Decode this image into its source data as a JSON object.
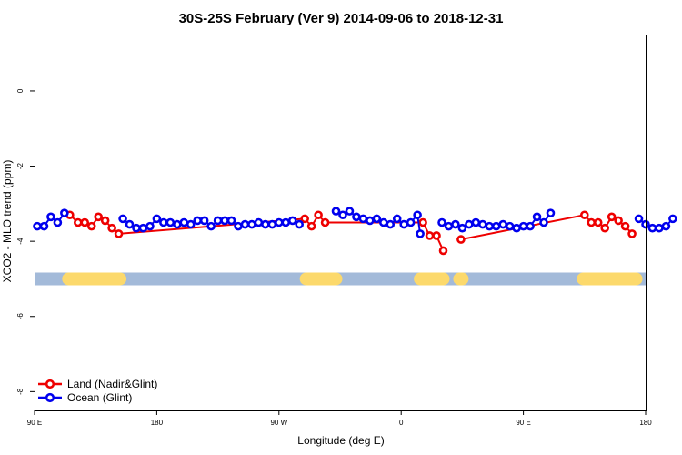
{
  "chart_data": {
    "type": "line",
    "title": "30S-25S February (Ver 9)   2014-09-06 to 2018-12-31",
    "xlabel": "Longitude (deg E)",
    "ylabel": "XCO2 - MLO trend (ppm)",
    "xlim": [
      90,
      540
    ],
    "ylim": [
      -8.5,
      1.5
    ],
    "x_ticks": [
      {
        "value": 90,
        "label": "90 E"
      },
      {
        "value": 180,
        "label": "180"
      },
      {
        "value": 270,
        "label": "90 W"
      },
      {
        "value": 360,
        "label": "0"
      },
      {
        "value": 450,
        "label": "90 E"
      },
      {
        "value": 540,
        "label": "180"
      }
    ],
    "y_ticks": [
      {
        "value": 0,
        "label": "0"
      },
      {
        "value": -2,
        "label": "-2"
      },
      {
        "value": -4,
        "label": "-4"
      },
      {
        "value": -6,
        "label": "-6"
      },
      {
        "value": -8,
        "label": "-8"
      }
    ],
    "grid": false,
    "legend_position": "bottom-left",
    "land_mask": {
      "y": -5.0,
      "ocean_color": "#a3bad9",
      "land_color": "#fcd96c",
      "land_ranges": [
        [
          115,
          153
        ],
        [
          290,
          312
        ],
        [
          374,
          391
        ],
        [
          403,
          405
        ],
        [
          494,
          533
        ]
      ]
    },
    "series": [
      {
        "name": "Land (Nadir&Glint)",
        "color": "#ee0000",
        "points": [
          [
            116,
            -3.3
          ],
          [
            122,
            -3.5
          ],
          [
            127,
            -3.5
          ],
          [
            132,
            -3.6
          ],
          [
            137,
            -3.35
          ],
          [
            142,
            -3.45
          ],
          [
            147,
            -3.65
          ],
          [
            152,
            -3.8
          ],
          [
            289,
            -3.4
          ],
          [
            294,
            -3.6
          ],
          [
            299,
            -3.3
          ],
          [
            304,
            -3.5
          ],
          [
            376,
            -3.5
          ],
          [
            381,
            -3.85
          ],
          [
            386,
            -3.85
          ],
          [
            391,
            -4.25
          ],
          null,
          [
            404,
            -3.95
          ],
          [
            495,
            -3.3
          ],
          [
            500,
            -3.5
          ],
          [
            505,
            -3.5
          ],
          [
            510,
            -3.65
          ],
          [
            515,
            -3.35
          ],
          [
            520,
            -3.45
          ],
          [
            525,
            -3.6
          ],
          [
            530,
            -3.8
          ]
        ]
      },
      {
        "name": "Ocean (Glint)",
        "color": "#0000ee",
        "points": [
          [
            92,
            -3.6
          ],
          [
            97,
            -3.6
          ],
          [
            102,
            -3.35
          ],
          [
            107,
            -3.5
          ],
          [
            112,
            -3.25
          ],
          null,
          [
            155,
            -3.4
          ],
          [
            160,
            -3.55
          ],
          [
            165,
            -3.65
          ],
          [
            170,
            -3.65
          ],
          [
            175,
            -3.6
          ],
          [
            180,
            -3.4
          ],
          [
            185,
            -3.5
          ],
          [
            190,
            -3.5
          ],
          [
            195,
            -3.55
          ],
          [
            200,
            -3.5
          ],
          [
            205,
            -3.55
          ],
          [
            210,
            -3.45
          ],
          [
            215,
            -3.45
          ],
          [
            220,
            -3.6
          ],
          [
            225,
            -3.45
          ],
          [
            230,
            -3.45
          ],
          [
            235,
            -3.45
          ],
          [
            240,
            -3.6
          ],
          [
            245,
            -3.55
          ],
          [
            250,
            -3.55
          ],
          [
            255,
            -3.5
          ],
          [
            260,
            -3.55
          ],
          [
            265,
            -3.55
          ],
          [
            270,
            -3.5
          ],
          [
            275,
            -3.5
          ],
          [
            280,
            -3.45
          ],
          [
            285,
            -3.55
          ],
          null,
          [
            312,
            -3.2
          ],
          [
            317,
            -3.3
          ],
          [
            322,
            -3.2
          ],
          [
            327,
            -3.35
          ],
          [
            332,
            -3.4
          ],
          [
            337,
            -3.45
          ],
          [
            342,
            -3.4
          ],
          [
            347,
            -3.5
          ],
          [
            352,
            -3.55
          ],
          [
            357,
            -3.4
          ],
          [
            362,
            -3.55
          ],
          [
            367,
            -3.5
          ],
          [
            372,
            -3.3
          ],
          [
            374,
            -3.8
          ],
          null,
          [
            390,
            -3.5
          ],
          [
            395,
            -3.6
          ],
          [
            400,
            -3.55
          ],
          [
            405,
            -3.65
          ],
          [
            410,
            -3.55
          ],
          [
            415,
            -3.5
          ],
          [
            420,
            -3.55
          ],
          [
            425,
            -3.6
          ],
          [
            430,
            -3.6
          ],
          [
            435,
            -3.55
          ],
          [
            440,
            -3.6
          ],
          [
            445,
            -3.65
          ],
          [
            450,
            -3.6
          ],
          [
            455,
            -3.6
          ],
          [
            460,
            -3.35
          ],
          [
            465,
            -3.5
          ],
          [
            470,
            -3.25
          ],
          null,
          [
            535,
            -3.4
          ],
          [
            540,
            -3.55
          ],
          [
            545,
            -3.65
          ],
          [
            550,
            -3.65
          ],
          [
            555,
            -3.6
          ],
          [
            560,
            -3.4
          ]
        ]
      }
    ]
  }
}
